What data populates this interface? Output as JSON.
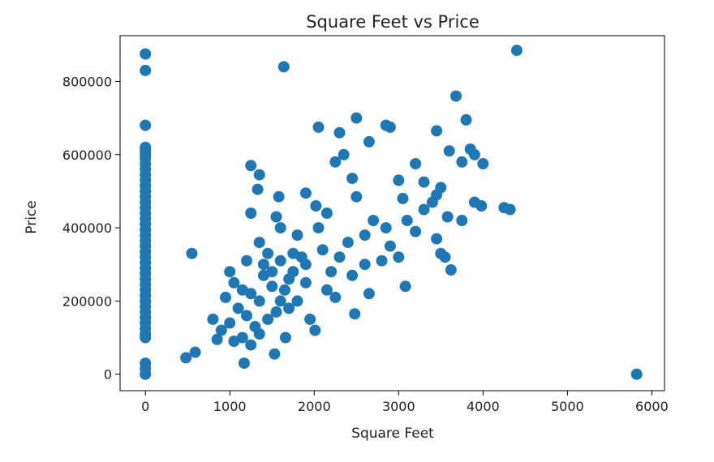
{
  "chart_data": {
    "type": "scatter",
    "title": "Square Feet vs Price",
    "xlabel": "Square Feet",
    "ylabel": "Price",
    "xlim": [
      -300,
      6150
    ],
    "ylim": [
      -45000,
      925000
    ],
    "xticks": [
      0,
      1000,
      2000,
      3000,
      4000,
      5000,
      6000
    ],
    "xtick_labels": [
      "0",
      "1000",
      "2000",
      "3000",
      "4000",
      "5000",
      "6000"
    ],
    "yticks": [
      0,
      200000,
      400000,
      600000,
      800000
    ],
    "ytick_labels": [
      "0",
      "200000",
      "400000",
      "600000",
      "800000"
    ],
    "grid": false,
    "legend": "none",
    "color": "#1f77b4",
    "series": [
      {
        "points": [
          [
            0,
            875000
          ],
          [
            0,
            830000
          ],
          [
            0,
            680000
          ],
          [
            0,
            620000
          ],
          [
            0,
            610000
          ],
          [
            0,
            600000
          ],
          [
            0,
            590000
          ],
          [
            0,
            575000
          ],
          [
            0,
            560000
          ],
          [
            0,
            545000
          ],
          [
            0,
            530000
          ],
          [
            0,
            515000
          ],
          [
            0,
            500000
          ],
          [
            0,
            485000
          ],
          [
            0,
            470000
          ],
          [
            0,
            455000
          ],
          [
            0,
            440000
          ],
          [
            0,
            425000
          ],
          [
            0,
            410000
          ],
          [
            0,
            395000
          ],
          [
            0,
            380000
          ],
          [
            0,
            365000
          ],
          [
            0,
            350000
          ],
          [
            0,
            335000
          ],
          [
            0,
            320000
          ],
          [
            0,
            305000
          ],
          [
            0,
            290000
          ],
          [
            0,
            275000
          ],
          [
            0,
            260000
          ],
          [
            0,
            245000
          ],
          [
            0,
            230000
          ],
          [
            0,
            215000
          ],
          [
            0,
            200000
          ],
          [
            0,
            185000
          ],
          [
            0,
            170000
          ],
          [
            0,
            155000
          ],
          [
            0,
            140000
          ],
          [
            0,
            125000
          ],
          [
            0,
            110000
          ],
          [
            0,
            100000
          ],
          [
            0,
            30000
          ],
          [
            0,
            15000
          ],
          [
            0,
            0
          ],
          [
            1640,
            840000
          ],
          [
            4400,
            885000
          ],
          [
            3680,
            760000
          ],
          [
            3800,
            695000
          ],
          [
            2050,
            675000
          ],
          [
            2500,
            700000
          ],
          [
            2850,
            680000
          ],
          [
            2900,
            675000
          ],
          [
            3450,
            665000
          ],
          [
            2300,
            660000
          ],
          [
            2650,
            635000
          ],
          [
            3600,
            610000
          ],
          [
            3850,
            615000
          ],
          [
            3900,
            600000
          ],
          [
            4000,
            575000
          ],
          [
            3750,
            580000
          ],
          [
            2350,
            600000
          ],
          [
            2250,
            580000
          ],
          [
            1250,
            570000
          ],
          [
            1350,
            545000
          ],
          [
            3200,
            575000
          ],
          [
            2450,
            535000
          ],
          [
            1330,
            505000
          ],
          [
            1580,
            485000
          ],
          [
            1900,
            495000
          ],
          [
            2500,
            485000
          ],
          [
            3000,
            530000
          ],
          [
            3300,
            525000
          ],
          [
            3500,
            510000
          ],
          [
            3450,
            490000
          ],
          [
            3400,
            470000
          ],
          [
            3900,
            470000
          ],
          [
            3980,
            460000
          ],
          [
            4250,
            455000
          ],
          [
            4320,
            450000
          ],
          [
            3580,
            430000
          ],
          [
            3750,
            420000
          ],
          [
            3300,
            450000
          ],
          [
            2020,
            460000
          ],
          [
            2150,
            440000
          ],
          [
            1250,
            440000
          ],
          [
            1550,
            430000
          ],
          [
            3050,
            480000
          ],
          [
            3100,
            420000
          ],
          [
            3200,
            390000
          ],
          [
            3450,
            370000
          ],
          [
            3550,
            320000
          ],
          [
            3620,
            285000
          ],
          [
            3080,
            240000
          ],
          [
            2650,
            220000
          ],
          [
            2250,
            210000
          ],
          [
            1800,
            200000
          ],
          [
            2010,
            120000
          ],
          [
            1530,
            55000
          ],
          [
            1170,
            30000
          ],
          [
            480,
            45000
          ],
          [
            590,
            60000
          ],
          [
            550,
            330000
          ],
          [
            2480,
            165000
          ],
          [
            1660,
            100000
          ],
          [
            5820,
            0
          ],
          [
            2900,
            350000
          ],
          [
            2600,
            380000
          ],
          [
            2800,
            310000
          ],
          [
            3500,
            330000
          ],
          [
            3000,
            320000
          ],
          [
            1450,
            330000
          ],
          [
            1600,
            400000
          ],
          [
            1200,
            310000
          ],
          [
            1350,
            360000
          ],
          [
            1700,
            260000
          ],
          [
            1900,
            300000
          ],
          [
            2100,
            340000
          ],
          [
            2300,
            320000
          ],
          [
            2400,
            360000
          ],
          [
            1800,
            380000
          ],
          [
            1500,
            240000
          ],
          [
            1350,
            200000
          ],
          [
            1250,
            220000
          ],
          [
            1100,
            180000
          ],
          [
            1000,
            140000
          ],
          [
            900,
            120000
          ],
          [
            800,
            150000
          ],
          [
            1150,
            100000
          ],
          [
            1050,
            90000
          ],
          [
            1600,
            200000
          ],
          [
            1700,
            180000
          ],
          [
            1900,
            250000
          ],
          [
            2200,
            280000
          ],
          [
            1400,
            270000
          ],
          [
            1450,
            150000
          ],
          [
            1300,
            130000
          ],
          [
            1200,
            160000
          ],
          [
            950,
            210000
          ],
          [
            1000,
            280000
          ],
          [
            2050,
            400000
          ],
          [
            2600,
            300000
          ],
          [
            2700,
            420000
          ],
          [
            1750,
            330000
          ],
          [
            1650,
            230000
          ],
          [
            1550,
            170000
          ],
          [
            1350,
            110000
          ],
          [
            1250,
            80000
          ],
          [
            850,
            95000
          ],
          [
            1050,
            250000
          ],
          [
            2150,
            230000
          ],
          [
            2450,
            270000
          ],
          [
            2850,
            400000
          ],
          [
            1950,
            150000
          ],
          [
            1850,
            320000
          ],
          [
            1150,
            230000
          ],
          [
            1400,
            300000
          ],
          [
            1500,
            280000
          ],
          [
            1600,
            310000
          ],
          [
            1750,
            280000
          ]
        ]
      }
    ]
  }
}
